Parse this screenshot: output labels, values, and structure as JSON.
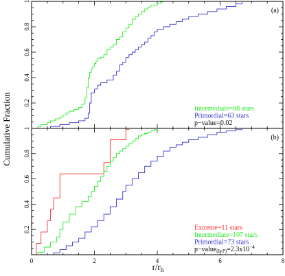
{
  "colors": {
    "extreme": "#ff2a2a",
    "intermediate": "#22ee22",
    "primordial": "#3333cc",
    "text": "#000000"
  },
  "chart_data": [
    {
      "type": "line",
      "panel_label": "(a)",
      "xlim": [
        0,
        8
      ],
      "ylim": [
        0,
        1
      ],
      "xticks": [
        0,
        2,
        4,
        6,
        8
      ],
      "yticks": [
        0.2,
        0.4,
        0.6,
        0.8,
        1
      ],
      "show_x_tick_labels": false,
      "legend_position": "bottom-right",
      "series": [
        {
          "name": "Intermediate=68 stars",
          "color_key": "intermediate",
          "x": [
            0.2,
            0.3,
            0.5,
            0.6,
            0.75,
            0.9,
            1.0,
            1.1,
            1.2,
            1.35,
            1.5,
            1.6,
            1.7,
            1.75,
            1.8,
            1.85,
            1.9,
            1.95,
            2.0,
            2.05,
            2.1,
            2.2,
            2.3,
            2.4,
            2.5,
            2.6,
            2.7,
            2.8,
            2.9,
            3.0,
            3.1,
            3.2,
            3.3,
            3.4,
            3.5,
            3.6,
            3.7,
            3.8,
            4.0,
            4.1,
            4.2
          ],
          "y": [
            0.015,
            0.03,
            0.045,
            0.06,
            0.075,
            0.09,
            0.105,
            0.12,
            0.135,
            0.15,
            0.165,
            0.19,
            0.24,
            0.32,
            0.4,
            0.44,
            0.47,
            0.49,
            0.51,
            0.53,
            0.55,
            0.56,
            0.58,
            0.62,
            0.64,
            0.66,
            0.7,
            0.72,
            0.76,
            0.79,
            0.82,
            0.86,
            0.88,
            0.9,
            0.92,
            0.94,
            0.955,
            0.97,
            0.985,
            0.995,
            1.0
          ]
        },
        {
          "name": "Primordial=63 stars",
          "color_key": "primordial",
          "x": [
            0.6,
            0.9,
            1.2,
            1.5,
            1.7,
            1.8,
            1.85,
            1.9,
            2.0,
            2.1,
            2.2,
            2.4,
            2.6,
            2.7,
            2.8,
            2.9,
            3.0,
            3.1,
            3.2,
            3.3,
            3.4,
            3.5,
            3.6,
            3.7,
            3.8,
            3.9,
            4.0,
            4.2,
            4.4,
            4.6,
            4.8,
            5.0,
            5.3,
            5.6,
            5.9,
            6.2,
            6.5,
            6.7
          ],
          "y": [
            0.015,
            0.03,
            0.045,
            0.06,
            0.08,
            0.12,
            0.2,
            0.28,
            0.31,
            0.34,
            0.36,
            0.38,
            0.42,
            0.45,
            0.5,
            0.52,
            0.56,
            0.58,
            0.6,
            0.62,
            0.64,
            0.66,
            0.68,
            0.71,
            0.73,
            0.76,
            0.78,
            0.8,
            0.82,
            0.84,
            0.86,
            0.88,
            0.9,
            0.92,
            0.94,
            0.96,
            0.98,
            1.0
          ]
        }
      ],
      "legend_lines": [
        {
          "text": "Intermediate=68 stars",
          "color_key": "intermediate"
        },
        {
          "text": "Primordial=63 stars",
          "color_key": "primordial"
        },
        {
          "text": "p−value=0.02",
          "color_key": "text"
        }
      ]
    },
    {
      "type": "line",
      "panel_label": "(b)",
      "xlim": [
        0,
        8
      ],
      "ylim": [
        0,
        1
      ],
      "xticks": [
        0,
        2,
        4,
        6,
        8
      ],
      "xtick_labels": [
        "0",
        "2",
        "4",
        "6",
        "8"
      ],
      "yticks": [
        0.2,
        0.4,
        0.6,
        0.8,
        1
      ],
      "show_x_tick_labels": true,
      "legend_position": "bottom-right",
      "series": [
        {
          "name": "Extreme=11 stars",
          "color_key": "extreme",
          "x": [
            0.15,
            0.3,
            0.5,
            0.6,
            0.7,
            0.9,
            2.3,
            2.5,
            3.0,
            3.1
          ],
          "y": [
            0.09,
            0.18,
            0.27,
            0.36,
            0.45,
            0.64,
            0.73,
            0.91,
            0.99,
            1.0
          ]
        },
        {
          "name": "Intermediate=107 stars",
          "color_key": "intermediate",
          "x": [
            0.2,
            0.4,
            0.6,
            0.8,
            0.9,
            1.0,
            1.2,
            1.4,
            1.6,
            1.8,
            1.9,
            2.0,
            2.1,
            2.2,
            2.3,
            2.4,
            2.5,
            2.6,
            2.7,
            2.8,
            2.9,
            3.0,
            3.1,
            3.2,
            3.3,
            3.4,
            3.5,
            3.6,
            3.7,
            3.8,
            3.9,
            4.0
          ],
          "y": [
            0.02,
            0.06,
            0.1,
            0.14,
            0.2,
            0.26,
            0.32,
            0.38,
            0.42,
            0.46,
            0.5,
            0.54,
            0.58,
            0.62,
            0.66,
            0.7,
            0.74,
            0.77,
            0.8,
            0.82,
            0.84,
            0.86,
            0.88,
            0.9,
            0.92,
            0.94,
            0.95,
            0.96,
            0.97,
            0.98,
            0.99,
            1.0
          ]
        },
        {
          "name": "Primordial=73 stars",
          "color_key": "primordial",
          "x": [
            0.7,
            0.9,
            1.1,
            1.3,
            1.5,
            1.7,
            1.9,
            2.1,
            2.3,
            2.5,
            2.7,
            2.9,
            3.0,
            3.2,
            3.4,
            3.6,
            3.8,
            4.0,
            4.2,
            4.4,
            4.6,
            4.8,
            5.0,
            5.3,
            5.6,
            5.9,
            6.2,
            6.5,
            6.7
          ],
          "y": [
            0.015,
            0.04,
            0.07,
            0.1,
            0.13,
            0.18,
            0.22,
            0.27,
            0.32,
            0.38,
            0.44,
            0.5,
            0.55,
            0.6,
            0.65,
            0.7,
            0.74,
            0.78,
            0.82,
            0.85,
            0.87,
            0.89,
            0.91,
            0.93,
            0.95,
            0.97,
            0.98,
            0.99,
            1.0
          ]
        }
      ],
      "legend_lines": [
        {
          "text": "Extreme=11 stars",
          "color_key": "extreme"
        },
        {
          "text": "Intermediate=107 stars",
          "color_key": "intermediate"
        },
        {
          "text": "Primordial=73 stars",
          "color_key": "primordial"
        }
      ],
      "pvalue": {
        "prefix": "p−value",
        "subscript": "(I+P)",
        "middle": "=2.3x10",
        "exponent": "−4"
      }
    }
  ],
  "shared_axes": {
    "ylabel": "Cumulative Fraction",
    "xlabel_main": "r/r",
    "xlabel_sub": "h"
  }
}
